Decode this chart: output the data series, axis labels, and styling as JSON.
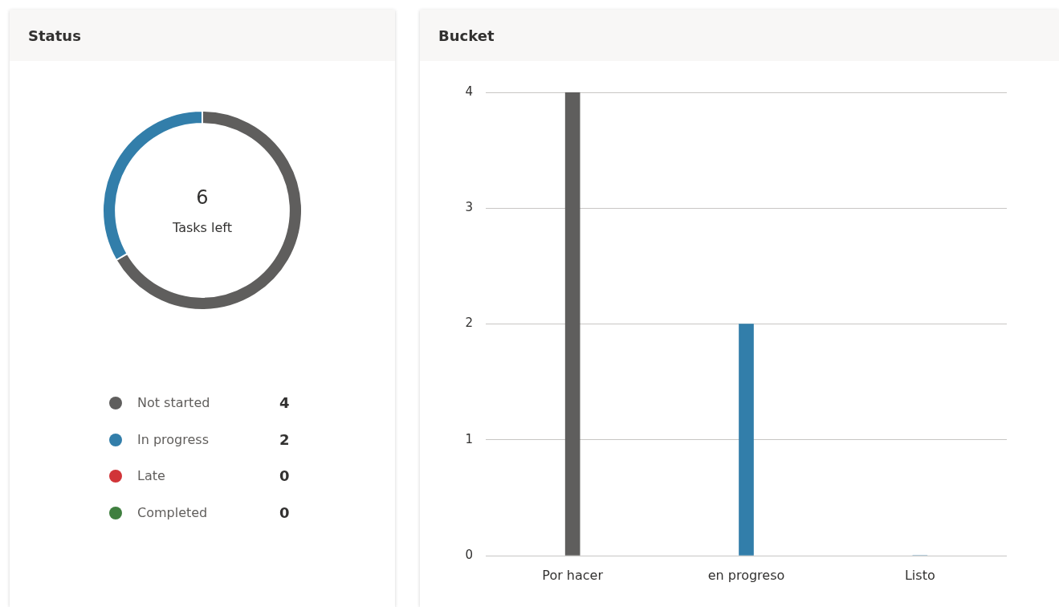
{
  "chart_data": [
    {
      "type": "donut",
      "title": "Status",
      "categories": [
        "Not started",
        "In progress",
        "Late",
        "Completed"
      ],
      "values": [
        4,
        2,
        0,
        0
      ],
      "colors": [
        "#5f5e5d",
        "#327eaa",
        "#d13438",
        "#3f7f3f"
      ],
      "annotations": [
        "6",
        "Tasks left"
      ],
      "legend": "bottom",
      "value_labels": [
        "4",
        "2",
        "0",
        "0"
      ]
    },
    {
      "type": "bar",
      "title": "Bucket",
      "categories": [
        "Por hacer",
        "en progreso",
        "Listo"
      ],
      "values": [
        4,
        2,
        0
      ],
      "colors": [
        "#5f5e5d",
        "#327eaa",
        "#327eaa"
      ],
      "ylim": [
        0,
        4
      ],
      "yticks": [
        0,
        1,
        2,
        3,
        4
      ],
      "grid": "y",
      "legend": false
    }
  ]
}
